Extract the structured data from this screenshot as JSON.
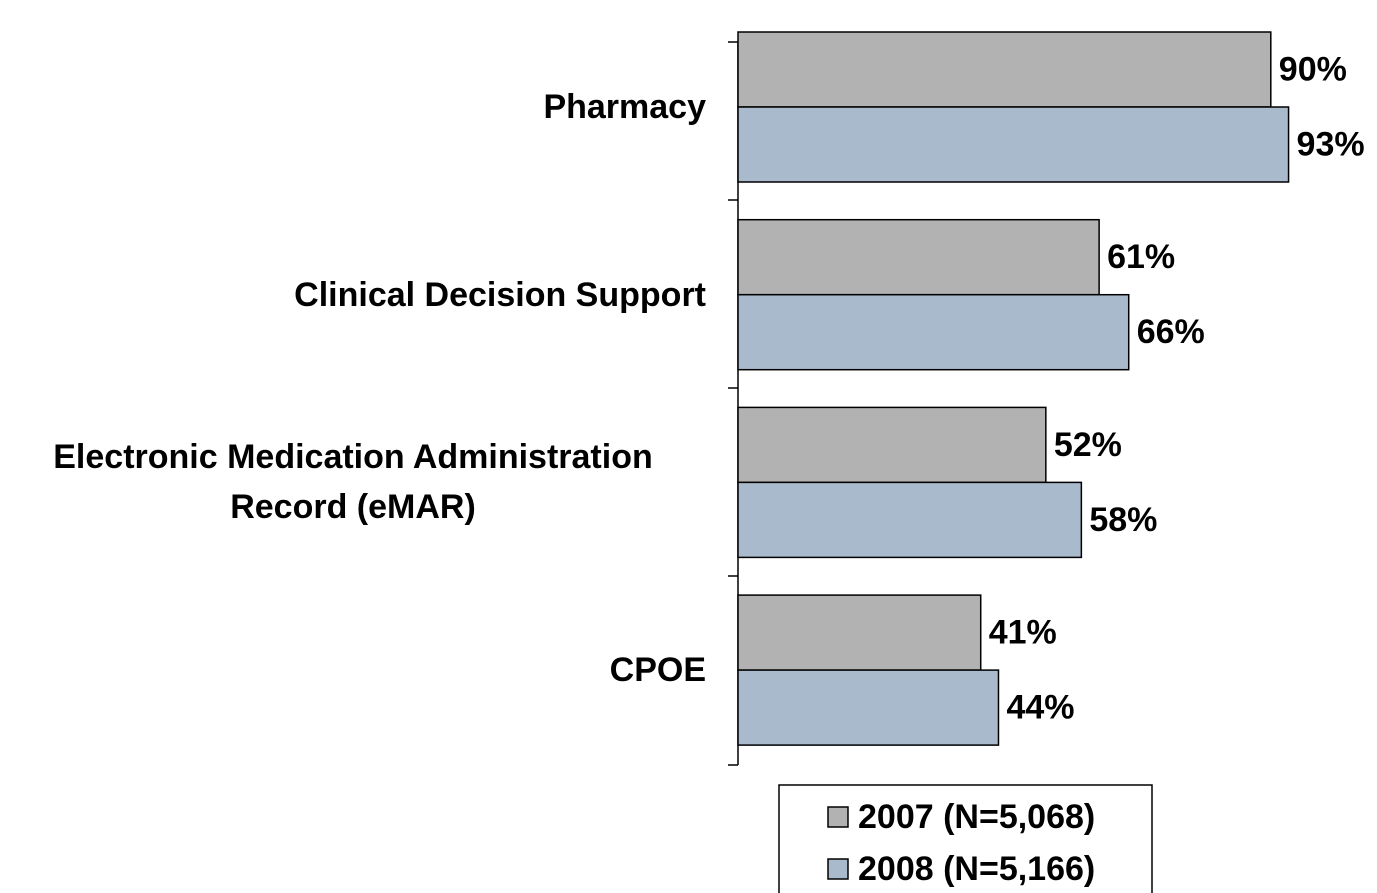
{
  "chart_data": {
    "type": "bar",
    "orientation": "horizontal",
    "categories": [
      "Pharmacy",
      "Clinical Decision Support",
      "Electronic Medication Administration Record (eMAR)",
      "CPOE"
    ],
    "series": [
      {
        "name": "2007 (N=5,068)",
        "color": "#b2b2b2",
        "values": [
          90,
          61,
          52,
          41
        ],
        "value_labels": [
          "90%",
          "61%",
          "52%",
          "41%"
        ]
      },
      {
        "name": "2008 (N=5,166)",
        "color": "#a9bacd",
        "values": [
          93,
          66,
          58,
          44
        ],
        "value_labels": [
          "93%",
          "66%",
          "58%",
          "44%"
        ]
      }
    ],
    "xlim": [
      0,
      100
    ]
  }
}
